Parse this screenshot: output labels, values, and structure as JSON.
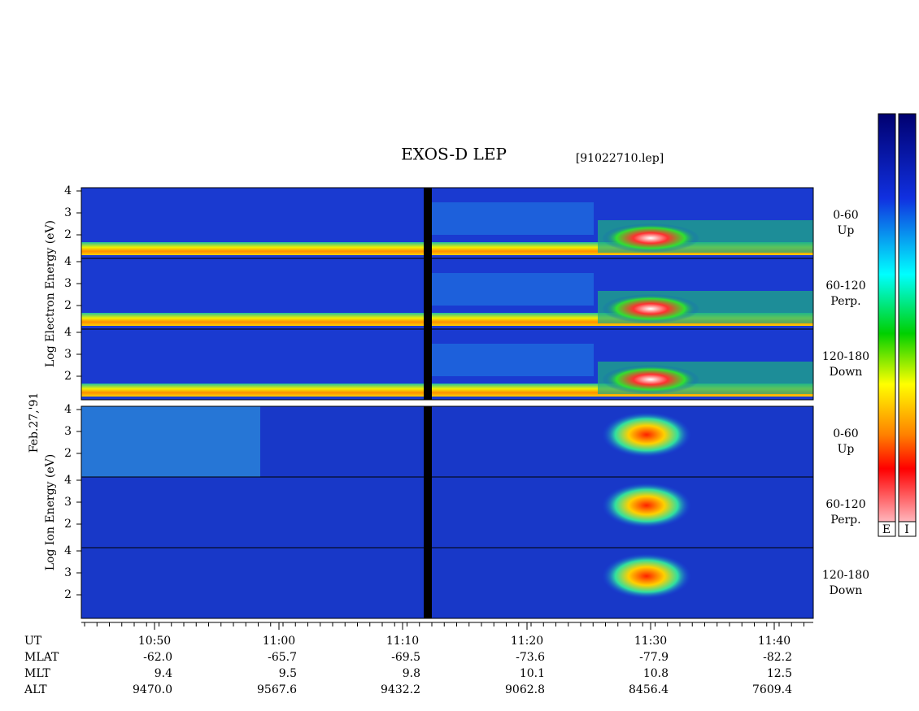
{
  "header": {
    "title": "EXOS-D LEP",
    "file": "[91022710.lep]"
  },
  "colorbars": [
    "E",
    "I"
  ],
  "date": "Feb.27,'91",
  "y_ticks": [
    "2",
    "3",
    "4"
  ],
  "groups": [
    {
      "label": "Log Electron Energy (eV)",
      "panels": [
        {
          "range": "0-60",
          "direction": "Up"
        },
        {
          "range": "60-120",
          "direction": "Perp."
        },
        {
          "range": "120-180",
          "direction": "Down"
        }
      ]
    },
    {
      "label": "Log Ion Energy (eV)",
      "panels": [
        {
          "range": "0-60",
          "direction": "Up"
        },
        {
          "range": "60-120",
          "direction": "Perp."
        },
        {
          "range": "120-180",
          "direction": "Down"
        }
      ]
    }
  ],
  "x_axis": {
    "rows": [
      {
        "name": "UT",
        "values": [
          "10:50",
          "11:00",
          "11:10",
          "11:20",
          "11:30",
          "11:40"
        ]
      },
      {
        "name": "MLAT",
        "values": [
          "-62.0",
          "-65.7",
          "-69.5",
          "-73.6",
          "-77.9",
          "-82.2"
        ]
      },
      {
        "name": "MLT",
        "values": [
          "9.4",
          "9.5",
          "9.8",
          "10.1",
          "10.8",
          "12.5"
        ]
      },
      {
        "name": "ALT",
        "values": [
          "9470.0",
          "9567.6",
          "9432.2",
          "9062.8",
          "8456.4",
          "7609.4"
        ]
      }
    ]
  }
}
